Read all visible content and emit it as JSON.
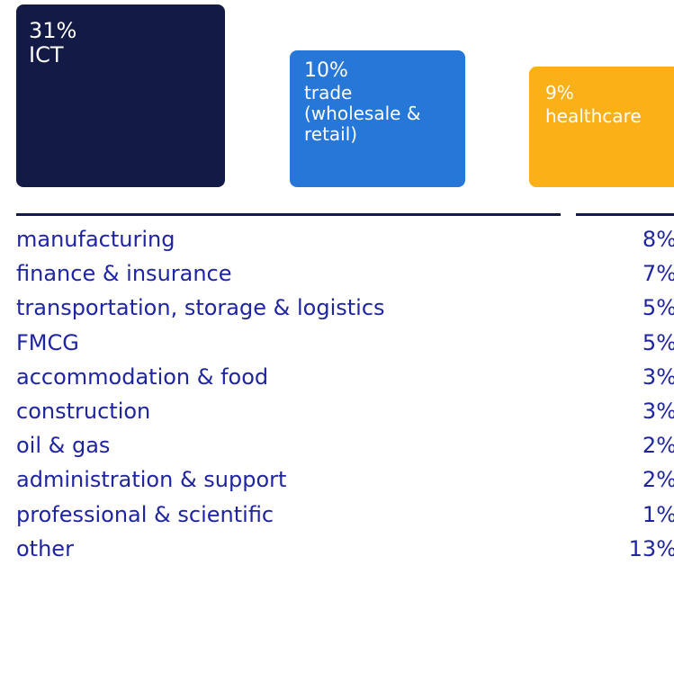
{
  "top_sectors": [
    {
      "value": "31%",
      "lines": [
        "ICT"
      ]
    },
    {
      "value": "10%",
      "lines": [
        "trade",
        "(wholesale &",
        "retail)"
      ]
    },
    {
      "value": "9%",
      "lines": [
        "healthcare"
      ]
    }
  ],
  "table": {
    "rows": [
      [
        "manufacturing",
        "8%"
      ],
      [
        "finance & insurance",
        "7%"
      ],
      [
        "transportation, storage & logistics",
        "5%"
      ],
      [
        "FMCG",
        "5%"
      ],
      [
        "accommodation & food",
        "3%"
      ],
      [
        "construction",
        "3%"
      ],
      [
        "oil & gas",
        "2%"
      ],
      [
        "administration & support",
        "2%"
      ],
      [
        "professional & scientific",
        "1%"
      ],
      [
        "other",
        "13%"
      ]
    ]
  }
}
